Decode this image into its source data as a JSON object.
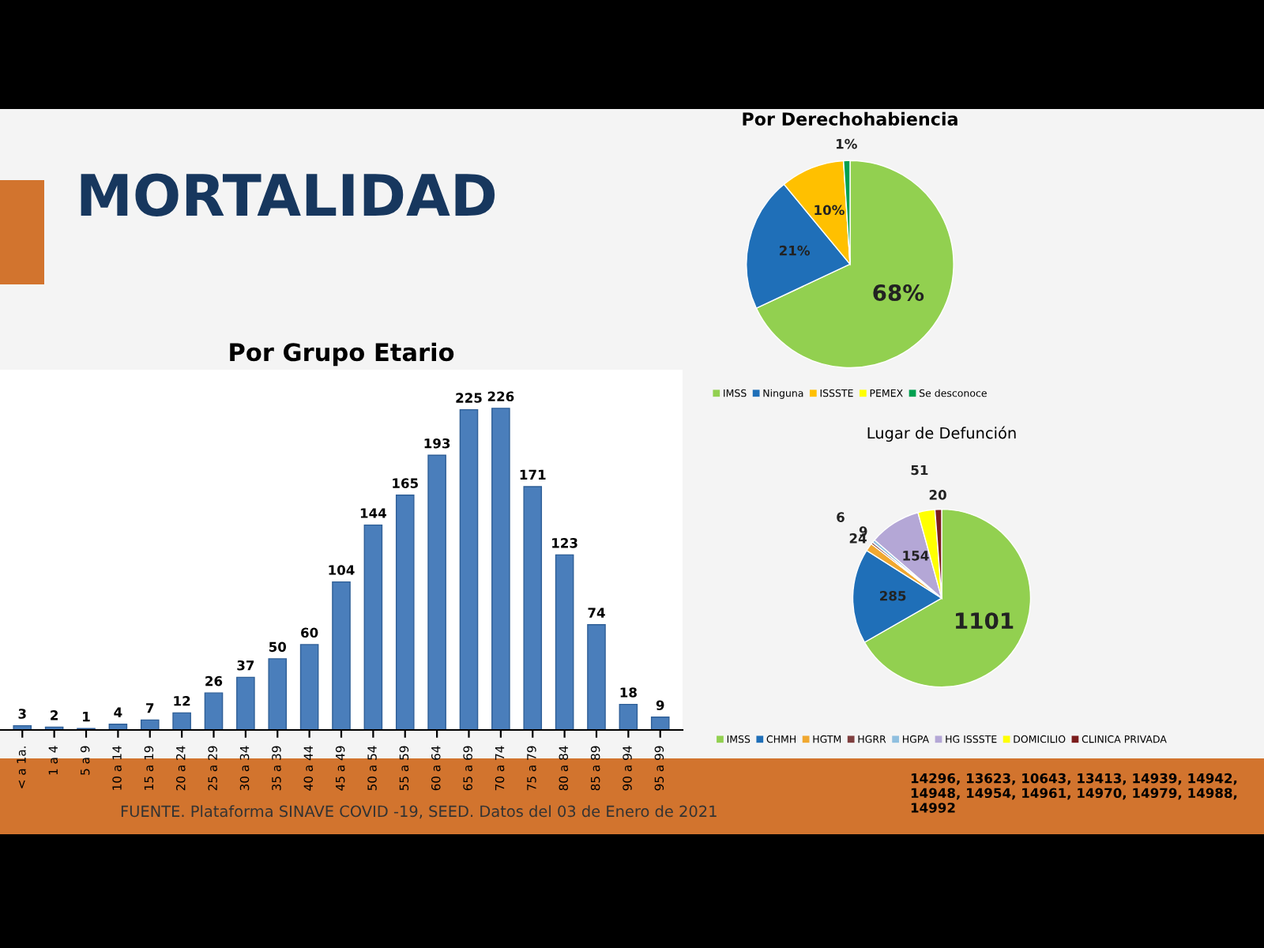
{
  "chart_data": [
    {
      "type": "pie",
      "title": "Por Derechohabiencia",
      "categories": [
        "IMSS",
        "Ninguna",
        "ISSSTE",
        "PEMEX",
        "Se desconoce"
      ],
      "values": [
        68,
        21,
        10,
        0,
        1
      ],
      "value_labels": [
        "68%",
        "21%",
        "10%",
        null,
        "1%"
      ],
      "colors": [
        "#92d050",
        "#1f6fb8",
        "#ffc000",
        "#ffff00",
        "#00a050"
      ],
      "legend": "bottom",
      "annotations": [
        "MORTALIDAD"
      ]
    },
    {
      "type": "bar",
      "title": "Por Grupo Etario",
      "categories": [
        "< a 1a.",
        "1 a 4",
        "5 a 9",
        "10 a 14",
        "15 a 19",
        "20 a 24",
        "25 a 29",
        "30 a 34",
        "35 a 39",
        "40 a 44",
        "45 a 49",
        "50 a 54",
        "55 a 59",
        "60 a 64",
        "65 a 69",
        "70 a 74",
        "75 a 79",
        "80 a 84",
        "85 a 89",
        "90 a 94",
        "95 a 99"
      ],
      "values": [
        3,
        2,
        1,
        4,
        7,
        12,
        26,
        37,
        50,
        60,
        104,
        144,
        165,
        193,
        225,
        226,
        171,
        123,
        74,
        18,
        9
      ],
      "color": "#4a7ebb",
      "data_labels": true,
      "tick_labels": "x",
      "annotations": [
        "FUENTE. Plataforma SINAVE COVID -19, SEED. Datos del 03 de Enero de 2021"
      ]
    },
    {
      "type": "pie",
      "title": "Lugar de Defunción",
      "categories": [
        "IMSS",
        "CHMH",
        "HGTM",
        "HGRR",
        "HGPA",
        "HG ISSSTE",
        "DOMICILIO",
        "CLINICA PRIVADA"
      ],
      "values": [
        1101,
        285,
        24,
        6,
        9,
        154,
        51,
        20
      ],
      "colors": [
        "#92d050",
        "#1f6fb8",
        "#f0a830",
        "#7f3f3f",
        "#8fbfdf",
        "#b4a7d6",
        "#ffff00",
        "#7b1c1c"
      ],
      "data_labels": true,
      "legend": "bottom",
      "annotations": [
        "14296, 13623, 10643, 13413, 14939, 14942, 14948, 14954, 14961, 14970, 14979, 14988, 14992"
      ]
    }
  ]
}
